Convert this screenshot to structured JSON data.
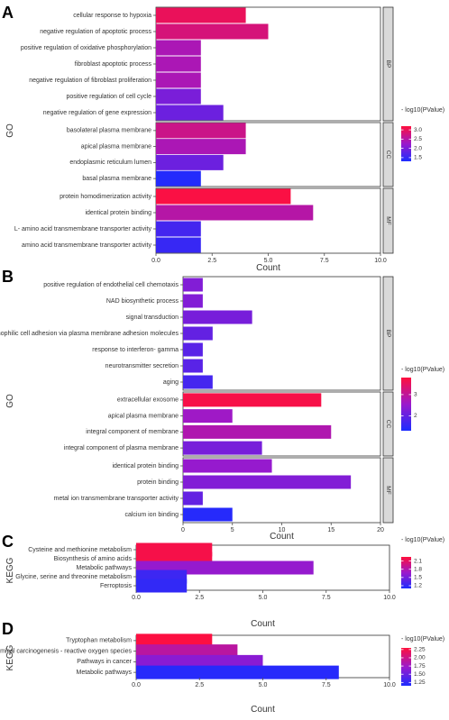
{
  "chart_data": [
    {
      "panel": "A",
      "type": "bar",
      "orientation": "horizontal",
      "ylabel": "GO",
      "xlabel": "Count",
      "xlim": [
        0,
        10
      ],
      "x_ticks": [
        "0.0",
        "2.5",
        "5.0",
        "7.5",
        "10.0"
      ],
      "legend": {
        "title": "- log10(PValue)",
        "ticks": [
          "3.0",
          "2.5",
          "2.0",
          "1.5"
        ],
        "range": [
          1.3,
          3.2
        ]
      },
      "groups": [
        {
          "name": "BP",
          "terms": [
            {
              "term": "cellular response to hypoxia",
              "count": 4,
              "log10p": 3.0
            },
            {
              "term": "negative regulation of apoptotic process",
              "count": 5,
              "log10p": 2.8
            },
            {
              "term": "positive regulation of oxidative phosphorylation",
              "count": 2,
              "log10p": 2.4
            },
            {
              "term": "fibroblast apoptotic process",
              "count": 2,
              "log10p": 2.4
            },
            {
              "term": "negative regulation of fibroblast proliferation",
              "count": 2,
              "log10p": 2.4
            },
            {
              "term": "positive regulation of cell cycle",
              "count": 2,
              "log10p": 2.0
            },
            {
              "term": "negative regulation of gene expression",
              "count": 3,
              "log10p": 1.9
            }
          ]
        },
        {
          "name": "CC",
          "terms": [
            {
              "term": "basolateral plasma membrane",
              "count": 4,
              "log10p": 2.7
            },
            {
              "term": "apical plasma membrane",
              "count": 4,
              "log10p": 2.4
            },
            {
              "term": "endoplasmic reticulum lumen",
              "count": 3,
              "log10p": 1.9
            },
            {
              "term": "basal plasma membrane",
              "count": 2,
              "log10p": 1.35
            }
          ]
        },
        {
          "name": "MF",
          "terms": [
            {
              "term": "protein homodimerization activity",
              "count": 6,
              "log10p": 3.15
            },
            {
              "term": "identical protein binding",
              "count": 7,
              "log10p": 2.5
            },
            {
              "term": "L- amino acid transmembrane transporter activity",
              "count": 2,
              "log10p": 1.6
            },
            {
              "term": "amino acid transmembrane transporter activity",
              "count": 2,
              "log10p": 1.5
            }
          ]
        }
      ]
    },
    {
      "panel": "B",
      "type": "bar",
      "orientation": "horizontal",
      "ylabel": "GO",
      "xlabel": "Count",
      "xlim": [
        0,
        20
      ],
      "x_ticks": [
        "0",
        "5",
        "10",
        "15",
        "20"
      ],
      "legend": {
        "title": "- log10(PValue)",
        "ticks": [
          "3",
          "2"
        ],
        "range": [
          1.3,
          3.8
        ]
      },
      "groups": [
        {
          "name": "BP",
          "terms": [
            {
              "term": "positive regulation of endothelial cell chemotaxis",
              "count": 2,
              "log10p": 2.3
            },
            {
              "term": "NAD biosynthetic process",
              "count": 2,
              "log10p": 2.3
            },
            {
              "term": "signal transduction",
              "count": 7,
              "log10p": 2.2
            },
            {
              "term": "homophilic cell adhesion via plasma membrane adhesion molecules",
              "count": 3,
              "log10p": 2.0
            },
            {
              "term": "response to interferon- gamma",
              "count": 2,
              "log10p": 1.9
            },
            {
              "term": "neurotransmitter secretion",
              "count": 2,
              "log10p": 1.9
            },
            {
              "term": "aging",
              "count": 3,
              "log10p": 1.7
            }
          ]
        },
        {
          "name": "CC",
          "terms": [
            {
              "term": "extracellular exosome",
              "count": 14,
              "log10p": 3.7
            },
            {
              "term": "apical plasma membrane",
              "count": 5,
              "log10p": 2.6
            },
            {
              "term": "integral component of membrane",
              "count": 15,
              "log10p": 2.8
            },
            {
              "term": "integral component of plasma membrane",
              "count": 8,
              "log10p": 2.2
            }
          ]
        },
        {
          "name": "MF",
          "terms": [
            {
              "term": "identical protein binding",
              "count": 9,
              "log10p": 2.5
            },
            {
              "term": "protein binding",
              "count": 17,
              "log10p": 2.3
            },
            {
              "term": "metal ion transmembrane transporter activity",
              "count": 2,
              "log10p": 2.0
            },
            {
              "term": "calcium ion binding",
              "count": 5,
              "log10p": 1.4
            }
          ]
        }
      ]
    },
    {
      "panel": "C",
      "type": "bar",
      "orientation": "horizontal",
      "ylabel": "KEGG",
      "xlabel": "Count",
      "xlim": [
        0,
        10
      ],
      "x_ticks": [
        "0.0",
        "2.5",
        "5.0",
        "7.5",
        "10.0"
      ],
      "legend": {
        "title": "- log10(PValue)",
        "ticks": [
          "2.1",
          "1.8",
          "1.5",
          "1.2"
        ],
        "range": [
          1.1,
          2.25
        ]
      },
      "groups": [
        {
          "name": "",
          "terms": [
            {
              "term": "Cysteine and methionine metabolism",
              "count": 3,
              "log10p": 2.2
            },
            {
              "term": "Biosynthesis of amino acids",
              "count": 3,
              "log10p": 2.2
            },
            {
              "term": "Metabolic pathways",
              "count": 7,
              "log10p": 1.65
            },
            {
              "term": "Glycine, serine and threonine metabolism",
              "count": 2,
              "log10p": 1.25
            },
            {
              "term": "Ferroptosis",
              "count": 2,
              "log10p": 1.2
            }
          ]
        }
      ]
    },
    {
      "panel": "D",
      "type": "bar",
      "orientation": "horizontal",
      "ylabel": "KEGG",
      "xlabel": "Count",
      "xlim": [
        0,
        10
      ],
      "x_ticks": [
        "0.0",
        "2.5",
        "5.0",
        "7.5",
        "10.0"
      ],
      "legend": {
        "title": "- log10(PValue)",
        "ticks": [
          "2.25",
          "2.00",
          "1.75",
          "1.50",
          "1.25"
        ],
        "range": [
          1.15,
          2.3
        ]
      },
      "groups": [
        {
          "name": "",
          "terms": [
            {
              "term": "Tryptophan metabolism",
              "count": 3,
              "log10p": 2.28
            },
            {
              "term": "Chemical carcinogenesis - reactive oxygen species",
              "count": 4,
              "log10p": 1.9
            },
            {
              "term": "Pathways in cancer",
              "count": 5,
              "log10p": 1.65
            },
            {
              "term": "Metabolic pathways",
              "count": 8,
              "log10p": 1.2
            }
          ]
        }
      ]
    }
  ],
  "colors": {
    "high": "#ff0f3c",
    "mid": "#9b19cc",
    "low": "#1c2cff",
    "strip": "#d9d9d9",
    "text": "#333333",
    "tick": "#4d4d4d"
  }
}
